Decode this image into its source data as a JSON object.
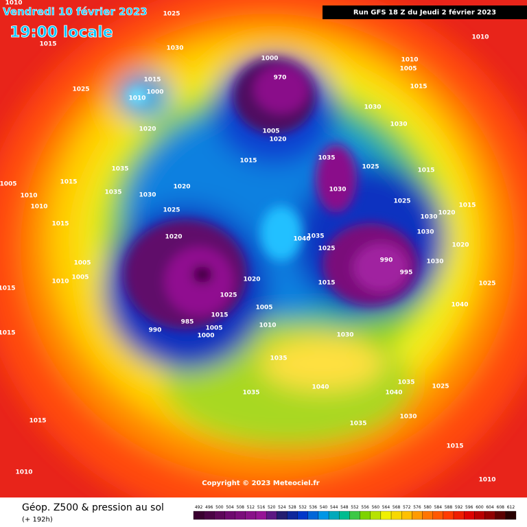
{
  "header": {
    "title": "Vendredi 10 février 2023",
    "time": "19:00 locale",
    "run": "Run GFS 18 Z du Jeudi 2 février 2023"
  },
  "map": {
    "copyright": "Copyright © 2023 Meteociel.fr",
    "isobar_labels": [
      1025,
      1015,
      1030,
      1025,
      1015,
      1000,
      1010,
      1020,
      1035,
      1015,
      1005,
      1010,
      1010,
      1015,
      1035,
      1030,
      1020,
      1025,
      1020,
      1005,
      1010,
      1005,
      1015,
      1015,
      990,
      985,
      1000,
      1005,
      1025,
      1015,
      1005,
      1010,
      1020,
      1040,
      1035,
      1025,
      1015,
      990,
      995,
      1000,
      970,
      1005,
      1020,
      1015,
      1035,
      1030,
      1025,
      1030,
      1030,
      1015,
      1010,
      1005,
      1010,
      1015,
      1025,
      1015,
      1020,
      1030,
      1030,
      1020,
      1030,
      1040,
      1025,
      1030,
      1035,
      1035,
      1040,
      1035,
      1040,
      1030,
      1025,
      1035,
      1015,
      1010,
      1010,
      1015,
      1010
    ]
  },
  "footer": {
    "title": "Géop. Z500 & pression au sol",
    "subtitle": "(+ 192h)"
  },
  "legend": {
    "values": [
      492,
      496,
      500,
      504,
      508,
      512,
      516,
      520,
      524,
      528,
      532,
      536,
      540,
      544,
      548,
      552,
      556,
      560,
      564,
      568,
      572,
      576,
      580,
      584,
      588,
      592,
      596,
      600,
      604,
      608,
      612
    ]
  }
}
